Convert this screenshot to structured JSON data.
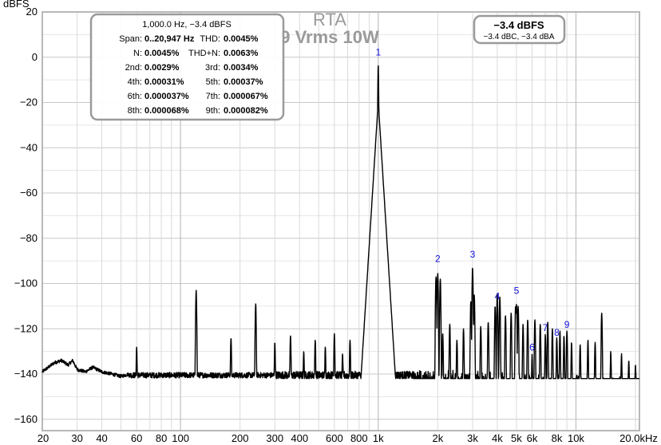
{
  "chart_data": {
    "type": "line",
    "title": "RTA",
    "subtitle": "9 Vrms 10W",
    "ylabel": "dBFS",
    "xscale": "log",
    "xlim": [
      20,
      20947
    ],
    "ylim": [
      -165,
      20
    ],
    "grid": true,
    "x_ticks": [
      {
        "v": 20,
        "label": "20"
      },
      {
        "v": 30,
        "label": "30"
      },
      {
        "v": 40,
        "label": "40"
      },
      {
        "v": 60,
        "label": "60"
      },
      {
        "v": 80,
        "label": "80"
      },
      {
        "v": 100,
        "label": "100"
      },
      {
        "v": 200,
        "label": "200"
      },
      {
        "v": 300,
        "label": "300"
      },
      {
        "v": 400,
        "label": "400"
      },
      {
        "v": 600,
        "label": "600"
      },
      {
        "v": 800,
        "label": "800"
      },
      {
        "v": 1000,
        "label": "1k"
      },
      {
        "v": 2000,
        "label": "2k"
      },
      {
        "v": 3000,
        "label": "3k"
      },
      {
        "v": 4000,
        "label": "4k"
      },
      {
        "v": 5000,
        "label": "5k"
      },
      {
        "v": 6000,
        "label": "6k"
      },
      {
        "v": 8000,
        "label": "8k"
      },
      {
        "v": 10000,
        "label": "10k"
      },
      {
        "v": 20000,
        "label": "20.0kHz"
      }
    ],
    "y_ticks": [
      20,
      0,
      -20,
      -40,
      -60,
      -80,
      -100,
      -120,
      -140,
      -160
    ],
    "noise_floor_db": -141,
    "low_freq_floor": [
      {
        "x": 20,
        "y": -139
      },
      {
        "x": 23,
        "y": -135
      },
      {
        "x": 25,
        "y": -134
      },
      {
        "x": 27,
        "y": -136
      },
      {
        "x": 28.5,
        "y": -134
      },
      {
        "x": 30,
        "y": -138
      },
      {
        "x": 33,
        "y": -139
      },
      {
        "x": 36,
        "y": -137
      },
      {
        "x": 40,
        "y": -139
      },
      {
        "x": 45,
        "y": -140
      },
      {
        "x": 50,
        "y": -141
      },
      {
        "x": 55,
        "y": -140
      }
    ],
    "peaks": [
      {
        "x": 60,
        "y": -128
      },
      {
        "x": 120,
        "y": -103
      },
      {
        "x": 180,
        "y": -124
      },
      {
        "x": 240,
        "y": -109
      },
      {
        "x": 300,
        "y": -126
      },
      {
        "x": 360,
        "y": -123
      },
      {
        "x": 420,
        "y": -130
      },
      {
        "x": 480,
        "y": -125
      },
      {
        "x": 540,
        "y": -128
      },
      {
        "x": 600,
        "y": -122
      },
      {
        "x": 660,
        "y": -131
      },
      {
        "x": 720,
        "y": -125
      },
      {
        "x": 840,
        "y": -127
      },
      {
        "x": 900,
        "y": -115
      },
      {
        "x": 960,
        "y": -125
      },
      {
        "x": 1000,
        "y": -3.4
      },
      {
        "x": 1960,
        "y": -97
      },
      {
        "x": 2000,
        "y": -95.5
      },
      {
        "x": 2060,
        "y": -98
      },
      {
        "x": 2120,
        "y": -122
      },
      {
        "x": 2300,
        "y": -118
      },
      {
        "x": 2500,
        "y": -125
      },
      {
        "x": 2700,
        "y": -120
      },
      {
        "x": 2940,
        "y": -108
      },
      {
        "x": 3000,
        "y": -93
      },
      {
        "x": 3060,
        "y": -105
      },
      {
        "x": 3300,
        "y": -119
      },
      {
        "x": 3600,
        "y": -117
      },
      {
        "x": 3900,
        "y": -110
      },
      {
        "x": 4000,
        "y": -104.5
      },
      {
        "x": 4120,
        "y": -106
      },
      {
        "x": 4400,
        "y": -114
      },
      {
        "x": 4700,
        "y": -113
      },
      {
        "x": 4950,
        "y": -110
      },
      {
        "x": 5000,
        "y": -109
      },
      {
        "x": 5100,
        "y": -110
      },
      {
        "x": 5400,
        "y": -118
      },
      {
        "x": 5700,
        "y": -116
      },
      {
        "x": 6000,
        "y": -131
      },
      {
        "x": 6200,
        "y": -116
      },
      {
        "x": 6600,
        "y": -118
      },
      {
        "x": 7000,
        "y": -122.5
      },
      {
        "x": 7200,
        "y": -117
      },
      {
        "x": 7600,
        "y": -120
      },
      {
        "x": 8000,
        "y": -124
      },
      {
        "x": 8300,
        "y": -121
      },
      {
        "x": 8700,
        "y": -123
      },
      {
        "x": 9000,
        "y": -121
      },
      {
        "x": 9500,
        "y": -126
      },
      {
        "x": 10500,
        "y": -127
      },
      {
        "x": 11500,
        "y": -125
      },
      {
        "x": 12500,
        "y": -126
      },
      {
        "x": 13500,
        "y": -113
      },
      {
        "x": 15000,
        "y": -130
      },
      {
        "x": 17000,
        "y": -131
      },
      {
        "x": 18500,
        "y": -134
      },
      {
        "x": 20000,
        "y": -136
      }
    ],
    "harmonic_labels": [
      {
        "n": "1",
        "x": 1000,
        "y": 0.8
      },
      {
        "n": "2",
        "x": 2000,
        "y": -90.5
      },
      {
        "n": "3",
        "x": 3000,
        "y": -88.5
      },
      {
        "n": "4",
        "x": 4000,
        "y": -107
      },
      {
        "n": "5",
        "x": 5000,
        "y": -104.5
      },
      {
        "n": "6",
        "x": 6000,
        "y": -129.5
      },
      {
        "n": "7",
        "x": 7000,
        "y": -121
      },
      {
        "n": "8",
        "x": 8000,
        "y": -123
      },
      {
        "n": "9",
        "x": 9000,
        "y": -119.5
      }
    ],
    "measurements": {
      "title": "1,000.0 Hz, −3.4 dBFS",
      "rows": [
        [
          {
            "k": "Span:",
            "v": "0..20,947 Hz"
          },
          {
            "k": "THD:",
            "v": "0.0045%"
          }
        ],
        [
          {
            "k": "N:",
            "v": "0.0045%"
          },
          {
            "k": "THD+N:",
            "v": "0.0063%"
          }
        ],
        [
          {
            "k": "2nd:",
            "v": "0.0029%"
          },
          {
            "k": "3rd:",
            "v": "0.0034%"
          }
        ],
        [
          {
            "k": "4th:",
            "v": "0.00031%"
          },
          {
            "k": "5th:",
            "v": "0.00037%"
          }
        ],
        [
          {
            "k": "6th:",
            "v": "0.000037%"
          },
          {
            "k": "7th:",
            "v": "0.000067%"
          }
        ],
        [
          {
            "k": "8th:",
            "v": "0.000068%"
          },
          {
            "k": "9th:",
            "v": "0.000082%"
          }
        ]
      ]
    },
    "level": {
      "main": "−3.4 dBFS",
      "sub": "−3.4 dBC, −3.4 dBA"
    }
  }
}
